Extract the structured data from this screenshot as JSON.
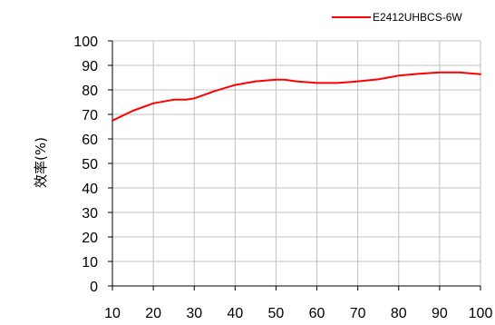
{
  "chart_data": {
    "type": "line",
    "title": "",
    "xlabel": "",
    "ylabel": "效率(%)",
    "xlim": [
      10,
      100
    ],
    "ylim": [
      0,
      100
    ],
    "x_ticks": [
      10,
      20,
      30,
      40,
      50,
      60,
      70,
      80,
      90,
      100
    ],
    "y_ticks": [
      0,
      10,
      20,
      30,
      40,
      50,
      60,
      70,
      80,
      90,
      100
    ],
    "grid": true,
    "legend_position": "top-right",
    "series": [
      {
        "name": "E2412UHBCS-6W",
        "color": "#ff0000",
        "x": [
          10,
          15,
          20,
          25,
          28,
          30,
          35,
          40,
          45,
          50,
          52,
          55,
          60,
          65,
          70,
          75,
          80,
          85,
          90,
          95,
          100
        ],
        "y": [
          67.5,
          71.5,
          74.5,
          76,
          76,
          76.5,
          79.5,
          82,
          83.5,
          84.2,
          84.2,
          83.5,
          82.8,
          82.8,
          83.5,
          84.3,
          85.8,
          86.6,
          87.1,
          87.1,
          86.4
        ]
      }
    ]
  }
}
